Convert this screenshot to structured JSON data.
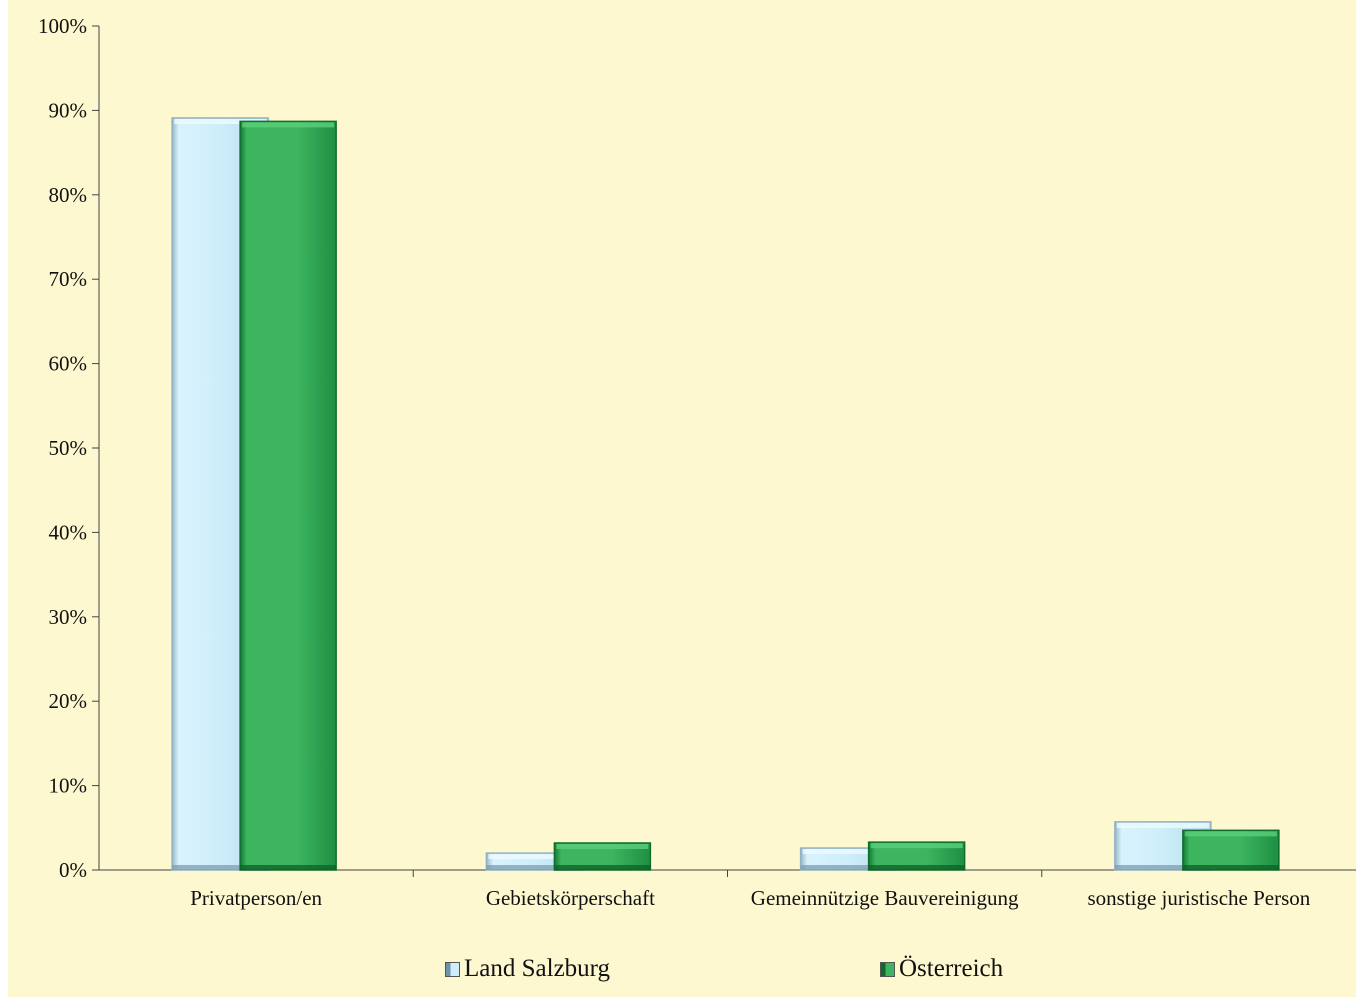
{
  "chart_data": {
    "type": "bar",
    "categories": [
      "Privatperson/en",
      "Gebietskörperschaft",
      "Gemeinnützige Bauvereinigung",
      "sonstige juristische Person"
    ],
    "series": [
      {
        "name": "Land Salzburg",
        "values": [
          89.1,
          2.0,
          2.6,
          5.7
        ],
        "color": "#cdeefa"
      },
      {
        "name": "Österreich",
        "values": [
          88.7,
          3.2,
          3.3,
          4.7
        ],
        "color": "#3cb55e"
      }
    ],
    "yticks": [
      "0%",
      "10%",
      "20%",
      "30%",
      "40%",
      "50%",
      "60%",
      "70%",
      "80%",
      "90%",
      "100%"
    ],
    "ylim": [
      0,
      100
    ],
    "grid": false,
    "legend_position": "bottom",
    "background": "#fdf8cf"
  }
}
